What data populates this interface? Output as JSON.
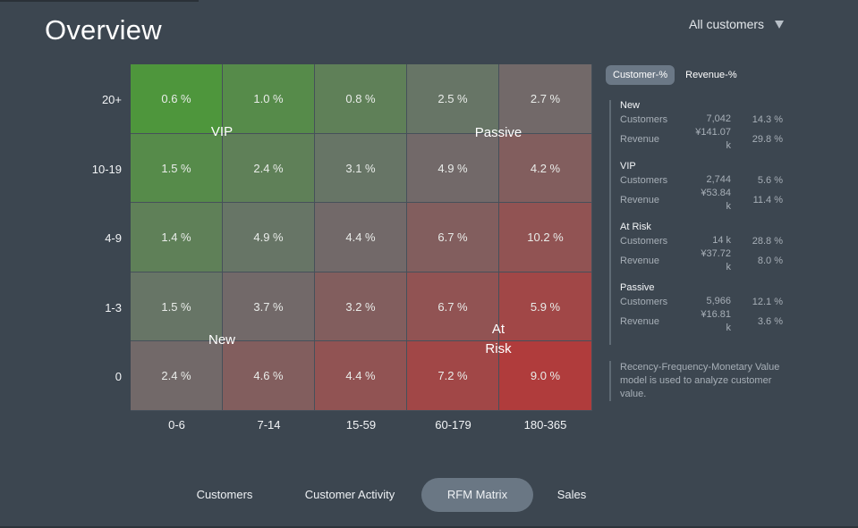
{
  "page": {
    "title": "Overview"
  },
  "filter": {
    "label": "All customers",
    "icon": "caret-down-icon"
  },
  "matrix": {
    "y_labels": [
      "20+",
      "10-19",
      "4-9",
      "1-3",
      "0"
    ],
    "x_labels": [
      "0-6",
      "7-14",
      "15-59",
      "60-179",
      "180-365"
    ],
    "rows": [
      [
        "0.6 %",
        "1.0 %",
        "0.8 %",
        "2.5 %",
        "2.7 %"
      ],
      [
        "1.5 %",
        "2.4 %",
        "3.1 %",
        "4.9 %",
        "4.2 %"
      ],
      [
        "1.4 %",
        "4.9 %",
        "4.4 %",
        "6.7 %",
        "10.2 %"
      ],
      [
        "1.5 %",
        "3.7 %",
        "3.2 %",
        "6.7 %",
        "5.9 %"
      ],
      [
        "2.4 %",
        "4.6 %",
        "4.4 %",
        "7.2 %",
        "9.0 %"
      ]
    ],
    "segment_labels": {
      "vip": "VIP",
      "passive": "Passive",
      "new": "New",
      "at_risk_line1": "At",
      "at_risk_line2": "Risk"
    },
    "colors": {
      "green": "#4e963c",
      "neutral": "#6c6e6e",
      "red": "#b03c3c"
    }
  },
  "toggle": {
    "customer_pct": "Customer-%",
    "revenue_pct": "Revenue-%"
  },
  "segments": [
    {
      "name": "New",
      "customers": "7,042",
      "customers_pct": "14.3 %",
      "revenue_l1": "¥141.07",
      "revenue_l2": "k",
      "revenue_pct": "29.8 %"
    },
    {
      "name": "VIP",
      "customers": "2,744",
      "customers_pct": "5.6 %",
      "revenue_l1": "¥53.84",
      "revenue_l2": "k",
      "revenue_pct": "11.4 %"
    },
    {
      "name": "At Risk",
      "customers": "14 k",
      "customers_pct": "28.8 %",
      "revenue_l1": "¥37.72",
      "revenue_l2": "k",
      "revenue_pct": "8.0 %"
    },
    {
      "name": "Passive",
      "customers": "5,966",
      "customers_pct": "12.1 %",
      "revenue_l1": "¥16.81",
      "revenue_l2": "k",
      "revenue_pct": "3.6 %"
    }
  ],
  "row_labels": {
    "customers": "Customers",
    "revenue": "Revenue"
  },
  "description": "Recency-Frequency-Monetary Value model is used to analyze customer value.",
  "nav": {
    "items": [
      "Customers",
      "Customer Activity",
      "RFM Matrix",
      "Sales"
    ],
    "active": "RFM Matrix"
  }
}
